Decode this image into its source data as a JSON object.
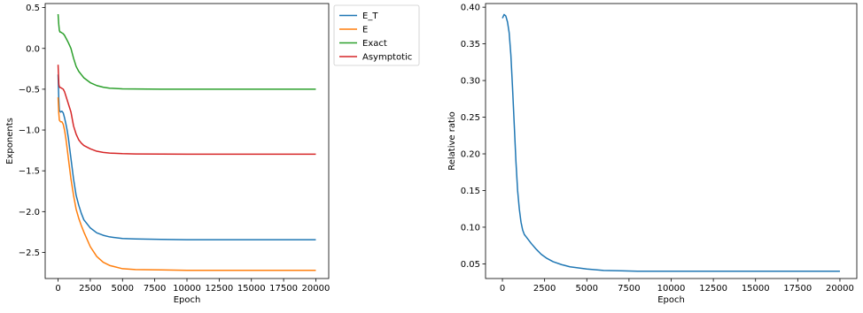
{
  "chart_data": [
    {
      "type": "line",
      "title": "",
      "xlabel": "Epoch",
      "ylabel": "Exponents",
      "xlim": [
        -1000,
        21000
      ],
      "ylim": [
        -2.82,
        0.55
      ],
      "xticks": [
        0,
        2500,
        5000,
        7500,
        10000,
        12500,
        15000,
        17500,
        20000
      ],
      "xtick_labels": [
        "0",
        "2500",
        "5000",
        "7500",
        "10000",
        "12500",
        "15000",
        "17500",
        "20000"
      ],
      "yticks": [
        0.5,
        0.0,
        -0.5,
        -1.0,
        -1.5,
        -2.0,
        -2.5
      ],
      "ytick_labels": [
        "0.5",
        "0.0",
        "−0.5",
        "−1.0",
        "−1.5",
        "−2.0",
        "−2.5"
      ],
      "grid": false,
      "legend_position": "outside-top-right",
      "series": [
        {
          "name": "E_T",
          "color": "#1f77b4",
          "x": [
            0,
            50,
            100,
            200,
            300,
            400,
            500,
            600,
            700,
            800,
            1000,
            1200,
            1400,
            1600,
            1800,
            2000,
            2500,
            3000,
            3500,
            4000,
            5000,
            6000,
            8000,
            10000,
            15000,
            20000
          ],
          "y": [
            -0.32,
            -0.6,
            -0.76,
            -0.78,
            -0.77,
            -0.79,
            -0.85,
            -0.92,
            -1.0,
            -1.1,
            -1.35,
            -1.6,
            -1.8,
            -1.92,
            -2.02,
            -2.1,
            -2.2,
            -2.26,
            -2.29,
            -2.31,
            -2.33,
            -2.335,
            -2.34,
            -2.345,
            -2.345,
            -2.345
          ]
        },
        {
          "name": "E",
          "color": "#ff7f0e",
          "x": [
            0,
            50,
            100,
            200,
            300,
            400,
            500,
            600,
            700,
            800,
            1000,
            1200,
            1400,
            1600,
            1800,
            2000,
            2500,
            3000,
            3500,
            4000,
            5000,
            6000,
            8000,
            10000,
            15000,
            20000
          ],
          "y": [
            -0.6,
            -0.78,
            -0.88,
            -0.9,
            -0.9,
            -0.93,
            -1.0,
            -1.1,
            -1.22,
            -1.35,
            -1.6,
            -1.8,
            -1.97,
            -2.08,
            -2.17,
            -2.25,
            -2.43,
            -2.55,
            -2.62,
            -2.66,
            -2.7,
            -2.71,
            -2.715,
            -2.72,
            -2.72,
            -2.72
          ]
        },
        {
          "name": "Exact",
          "color": "#2ca02c",
          "x": [
            0,
            50,
            100,
            150,
            200,
            300,
            400,
            500,
            600,
            700,
            800,
            1000,
            1200,
            1400,
            1600,
            1800,
            2000,
            2500,
            3000,
            3500,
            4000,
            5000,
            6000,
            8000,
            10000,
            15000,
            20000
          ],
          "y": [
            0.42,
            0.3,
            0.22,
            0.2,
            0.2,
            0.19,
            0.18,
            0.16,
            0.13,
            0.1,
            0.07,
            0.0,
            -0.12,
            -0.22,
            -0.28,
            -0.32,
            -0.36,
            -0.42,
            -0.455,
            -0.475,
            -0.487,
            -0.495,
            -0.497,
            -0.5,
            -0.5,
            -0.5,
            -0.5
          ]
        },
        {
          "name": "Asymptotic",
          "color": "#d62728",
          "x": [
            0,
            30,
            60,
            100,
            150,
            200,
            300,
            400,
            500,
            600,
            700,
            800,
            1000,
            1200,
            1400,
            1600,
            1800,
            2000,
            2500,
            3000,
            3500,
            4000,
            5000,
            6000,
            8000,
            10000,
            15000,
            20000
          ],
          "y": [
            -0.2,
            -0.32,
            -0.44,
            -0.47,
            -0.48,
            -0.48,
            -0.49,
            -0.5,
            -0.53,
            -0.58,
            -0.63,
            -0.68,
            -0.78,
            -0.95,
            -1.05,
            -1.12,
            -1.16,
            -1.19,
            -1.23,
            -1.26,
            -1.275,
            -1.283,
            -1.29,
            -1.293,
            -1.295,
            -1.296,
            -1.296,
            -1.296
          ]
        }
      ]
    },
    {
      "type": "line",
      "title": "",
      "xlabel": "Epoch",
      "ylabel": "Relative ratio",
      "xlim": [
        -1000,
        21000
      ],
      "ylim": [
        0.03,
        0.405
      ],
      "xticks": [
        0,
        2500,
        5000,
        7500,
        10000,
        12500,
        15000,
        17500,
        20000
      ],
      "xtick_labels": [
        "0",
        "2500",
        "5000",
        "7500",
        "10000",
        "12500",
        "15000",
        "17500",
        "20000"
      ],
      "yticks": [
        0.05,
        0.1,
        0.15,
        0.2,
        0.25,
        0.3,
        0.35,
        0.4
      ],
      "ytick_labels": [
        "0.05",
        "0.10",
        "0.15",
        "0.20",
        "0.25",
        "0.30",
        "0.35",
        "0.40"
      ],
      "grid": false,
      "series": [
        {
          "color": "#1f77b4",
          "x": [
            0,
            100,
            200,
            300,
            400,
            500,
            600,
            700,
            800,
            900,
            1000,
            1100,
            1200,
            1300,
            1400,
            1500,
            1700,
            2000,
            2300,
            2600,
            3000,
            3500,
            4000,
            5000,
            6000,
            7000,
            8000,
            10000,
            15000,
            20000
          ],
          "y": [
            0.385,
            0.39,
            0.388,
            0.38,
            0.365,
            0.335,
            0.29,
            0.24,
            0.19,
            0.15,
            0.125,
            0.107,
            0.096,
            0.09,
            0.087,
            0.084,
            0.078,
            0.07,
            0.063,
            0.058,
            0.053,
            0.049,
            0.046,
            0.043,
            0.041,
            0.0405,
            0.04,
            0.04,
            0.04,
            0.04
          ]
        }
      ]
    }
  ]
}
